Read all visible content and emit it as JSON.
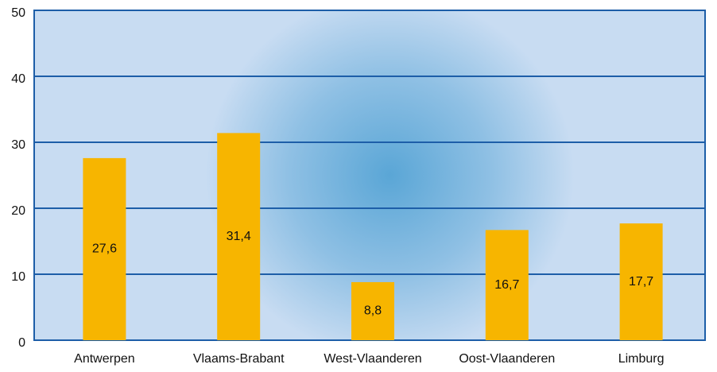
{
  "chart_data": {
    "type": "bar",
    "categories": [
      "Antwerpen",
      "Vlaams-Brabant",
      "West-Vlaanderen",
      "Oost-Vlaanderen",
      "Limburg"
    ],
    "values": [
      27.6,
      31.4,
      8.8,
      16.7,
      17.7
    ],
    "value_labels": [
      "27,6",
      "31,4",
      "8,8",
      "16,7",
      "17,7"
    ],
    "color": "#f7b500",
    "ylim": [
      0,
      50
    ],
    "yticks": [
      0,
      10,
      20,
      30,
      40,
      50
    ],
    "grid": true
  }
}
